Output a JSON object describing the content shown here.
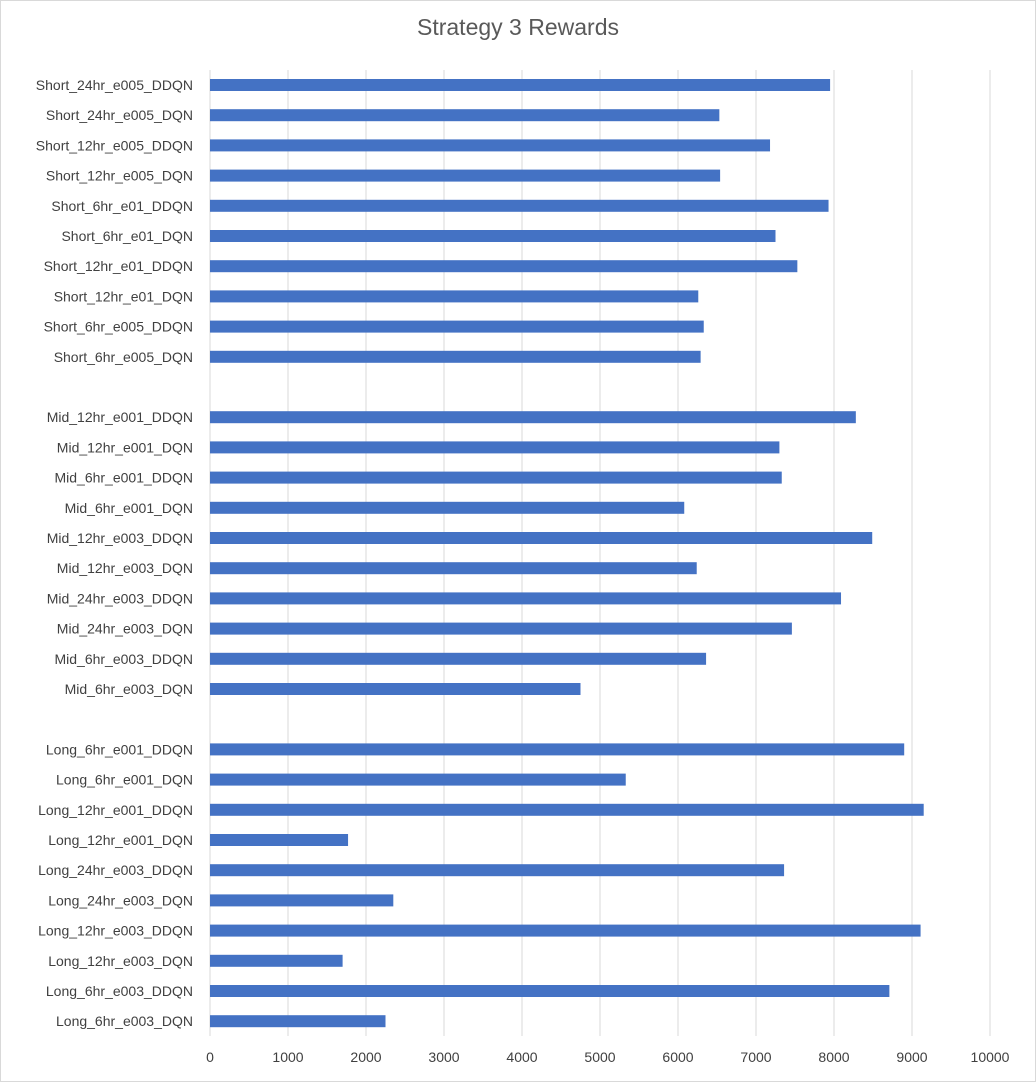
{
  "chart_data": {
    "type": "bar",
    "orientation": "horizontal",
    "title": "Strategy 3 Rewards",
    "xlabel": "",
    "ylabel": "",
    "xlim": [
      0,
      10000
    ],
    "x_ticks": [
      "0",
      "1000",
      "2000",
      "3000",
      "4000",
      "5000",
      "6000",
      "7000",
      "8000",
      "9000",
      "10000"
    ],
    "grid": "vertical",
    "legend": "none",
    "bar_color": "#4472c4",
    "categories": [
      "Short_24hr_e005_DDQN",
      "Short_24hr_e005_DQN",
      "Short_12hr_e005_DDQN",
      "Short_12hr_e005_DQN",
      "Short_6hr_e01_DDQN",
      "Short_6hr_e01_DQN",
      "Short_12hr_e01_DDQN",
      "Short_12hr_e01_DQN",
      "Short_6hr_e005_DDQN",
      "Short_6hr_e005_DQN",
      "",
      "Mid_12hr_e001_DDQN",
      "Mid_12hr_e001_DQN",
      "Mid_6hr_e001_DDQN",
      "Mid_6hr_e001_DQN",
      "Mid_12hr_e003_DDQN",
      "Mid_12hr_e003_DQN",
      "Mid_24hr_e003_DDQN",
      "Mid_24hr_e003_DQN",
      "Mid_6hr_e003_DDQN",
      "Mid_6hr_e003_DQN",
      "",
      "Long_6hr_e001_DDQN",
      "Long_6hr_e001_DQN",
      "Long_12hr_e001_DDQN",
      "Long_12hr_e001_DQN",
      "Long_24hr_e003_DDQN",
      "Long_24hr_e003_DQN",
      "Long_12hr_e003_DDQN",
      "Long_12hr_e003_DQN",
      "Long_6hr_e003_DDQN",
      "Long_6hr_e003_DQN"
    ],
    "values": [
      7950,
      6530,
      7180,
      6540,
      7930,
      7250,
      7530,
      6260,
      6330,
      6290,
      null,
      8280,
      7300,
      7330,
      6080,
      8490,
      6240,
      8090,
      7460,
      6360,
      4750,
      null,
      8900,
      5330,
      9150,
      1770,
      7360,
      2350,
      9110,
      1700,
      8710,
      2250
    ]
  }
}
